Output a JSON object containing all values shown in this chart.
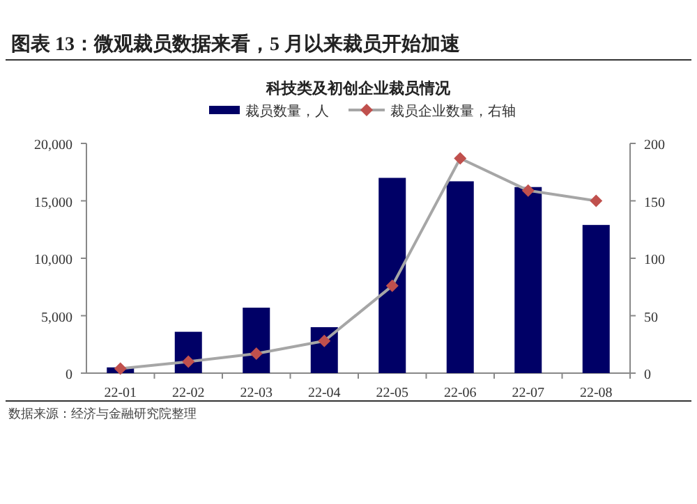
{
  "chart_data": {
    "type": "bar",
    "title": "图表 13：微观裁员数据来看，5 月以来裁员开始加速",
    "subtitle": "科技类及初创企业裁员情况",
    "categories": [
      "22-01",
      "22-02",
      "22-03",
      "22-04",
      "22-05",
      "22-06",
      "22-07",
      "22-08"
    ],
    "series": [
      {
        "name": "裁员数量，人",
        "color": "#000066",
        "values": [
          500,
          3600,
          5700,
          4000,
          17000,
          16700,
          16200,
          12900
        ]
      },
      {
        "name": "裁员企业数量，右轴",
        "type": "line",
        "axis": "y2",
        "color": "#a6a6a6",
        "colors": [
          "#c0504d",
          "#c0504d",
          "#c0504d",
          "#c0504d",
          "#c0504d",
          "#c0504d",
          "#c0504d",
          "#c0504d"
        ],
        "marker": "diamond",
        "values": [
          4,
          10,
          17,
          28,
          76,
          187,
          159,
          150
        ]
      }
    ],
    "ylim": [
      0,
      20000
    ],
    "yticks": [
      0,
      {
        "value": 5000,
        "label": "5,000"
      },
      {
        "value": 10000,
        "label": "10,000"
      },
      {
        "value": 15000,
        "label": "15,000"
      },
      {
        "value": 20000,
        "label": "20,000"
      }
    ],
    "y2lim": [
      0,
      200
    ],
    "y2ticks": [
      0,
      50,
      100,
      150,
      200
    ],
    "legend": "top",
    "grid": false,
    "annotations": [
      "数据来源：经济与金融研究院整理"
    ]
  }
}
